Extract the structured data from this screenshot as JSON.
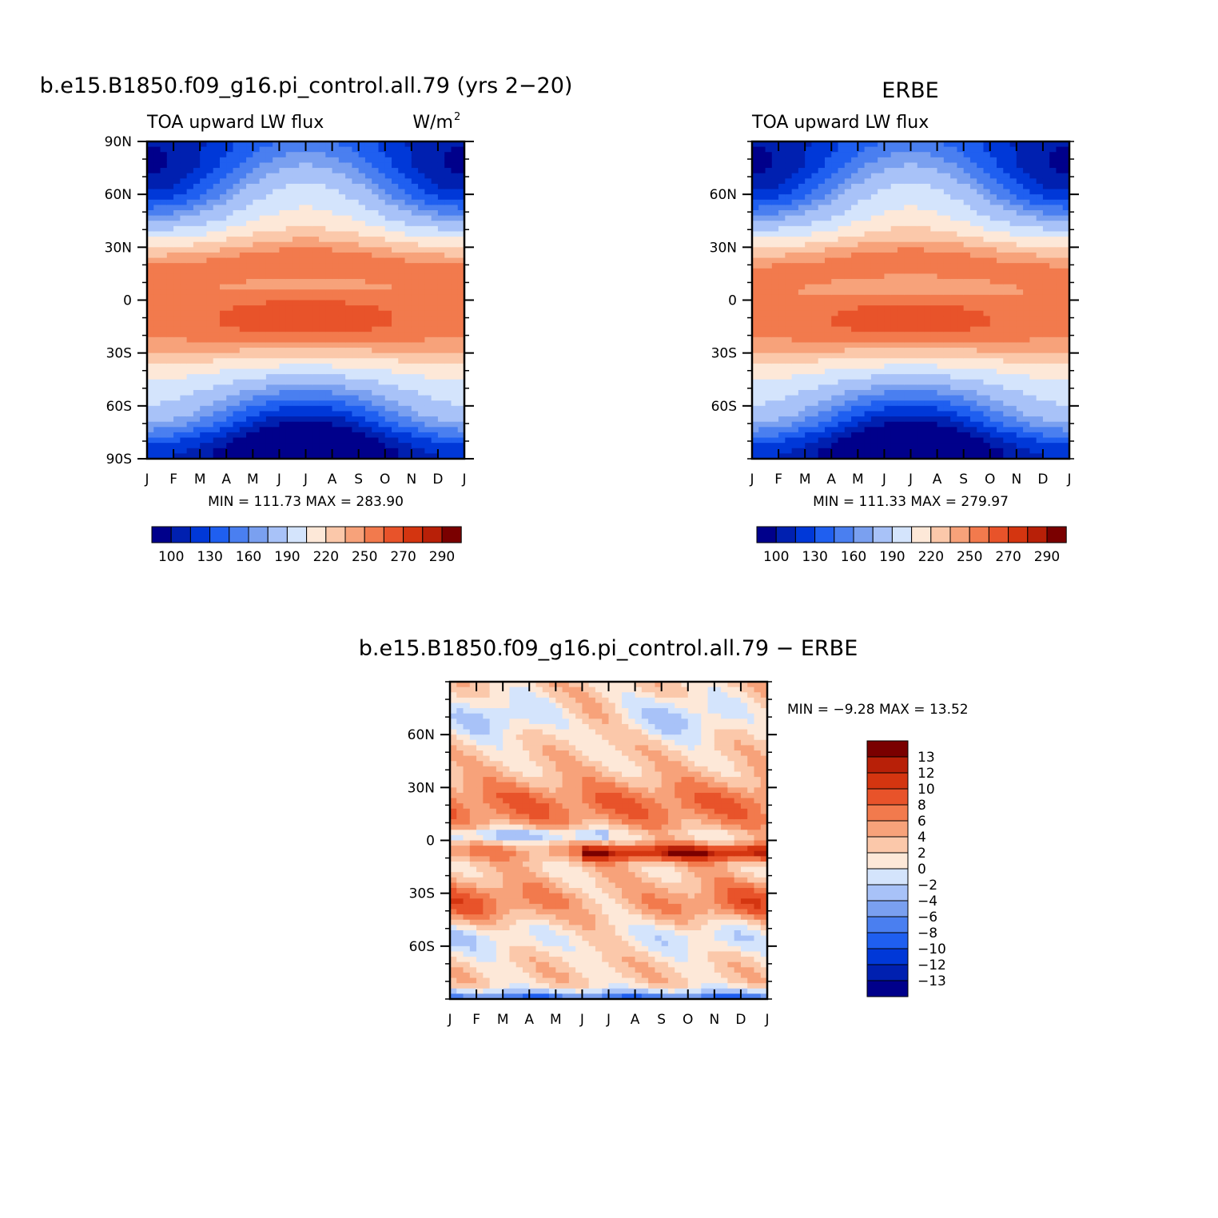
{
  "colors": {
    "abs_levels": [
      "#00008b",
      "#0020b0",
      "#0038d8",
      "#1f5ff0",
      "#4a7ff0",
      "#7aa0f0",
      "#a8c2f8",
      "#d4e4fc",
      "#fde8d8",
      "#fbc8aa",
      "#f7a27a",
      "#f27a4d",
      "#e8532a",
      "#d43510",
      "#b82008",
      "#7a0000"
    ],
    "diff_levels": [
      "#00008b",
      "#0020b0",
      "#0038d8",
      "#1f5ff0",
      "#4a7ff0",
      "#7aa0f0",
      "#a8c2f8",
      "#d4e4fc",
      "#fde8d8",
      "#fbc8aa",
      "#f7a27a",
      "#f27a4d",
      "#e8532a",
      "#d43510",
      "#b82008",
      "#7a0000"
    ]
  },
  "chart_data": [
    {
      "id": "model",
      "type": "heatmap",
      "title": "b.e15.B1850.f09_g16.pi_control.all.79 (yrs 2−20)",
      "subtitle_left": "TOA upward LW flux",
      "subtitle_right": "W/m",
      "subtitle_right_sup": "2",
      "x_ticklabels": [
        "J",
        "F",
        "M",
        "A",
        "M",
        "J",
        "J",
        "A",
        "S",
        "O",
        "N",
        "D",
        "J"
      ],
      "y_ticks": [
        90,
        60,
        30,
        0,
        -30,
        -60,
        -90
      ],
      "y_ticklabels": [
        "90N",
        "60N",
        "30N",
        "0",
        "30S",
        "60S",
        "90S"
      ],
      "ylim": [
        -90,
        90
      ],
      "stats": "MIN = 111.73 MAX = 283.90",
      "min": 111.73,
      "max": 283.9,
      "colorbar_labels": [
        "100",
        "130",
        "160",
        "190",
        "220",
        "250",
        "270",
        "290"
      ]
    },
    {
      "id": "obs",
      "type": "heatmap",
      "title": "ERBE",
      "subtitle_left": "TOA upward LW flux",
      "x_ticklabels": [
        "J",
        "F",
        "M",
        "A",
        "M",
        "J",
        "J",
        "A",
        "S",
        "O",
        "N",
        "D",
        "J"
      ],
      "y_ticks": [
        60,
        30,
        0,
        -30,
        -60
      ],
      "y_ticklabels": [
        "60N",
        "30N",
        "0",
        "30S",
        "60S"
      ],
      "ylim": [
        -90,
        90
      ],
      "stats": "MIN = 111.33 MAX = 279.97",
      "min": 111.33,
      "max": 279.97,
      "colorbar_labels": [
        "100",
        "130",
        "160",
        "190",
        "220",
        "250",
        "270",
        "290"
      ]
    },
    {
      "id": "diff",
      "type": "heatmap",
      "title": "b.e15.B1850.f09_g16.pi_control.all.79 − ERBE",
      "x_ticklabels": [
        "J",
        "F",
        "M",
        "A",
        "M",
        "J",
        "J",
        "A",
        "S",
        "O",
        "N",
        "D",
        "J"
      ],
      "y_ticks": [
        60,
        30,
        0,
        -30,
        -60
      ],
      "y_ticklabels": [
        "60N",
        "30N",
        "0",
        "30S",
        "60S"
      ],
      "ylim": [
        -90,
        90
      ],
      "stats": "MIN = −9.28 MAX =  13.52",
      "min": -9.28,
      "max": 13.52,
      "colorbar_labels": [
        "13",
        "12",
        "10",
        "8",
        "6",
        "4",
        "2",
        "0",
        "−2",
        "−4",
        "−6",
        "−8",
        "−10",
        "−12",
        "−13"
      ]
    }
  ]
}
